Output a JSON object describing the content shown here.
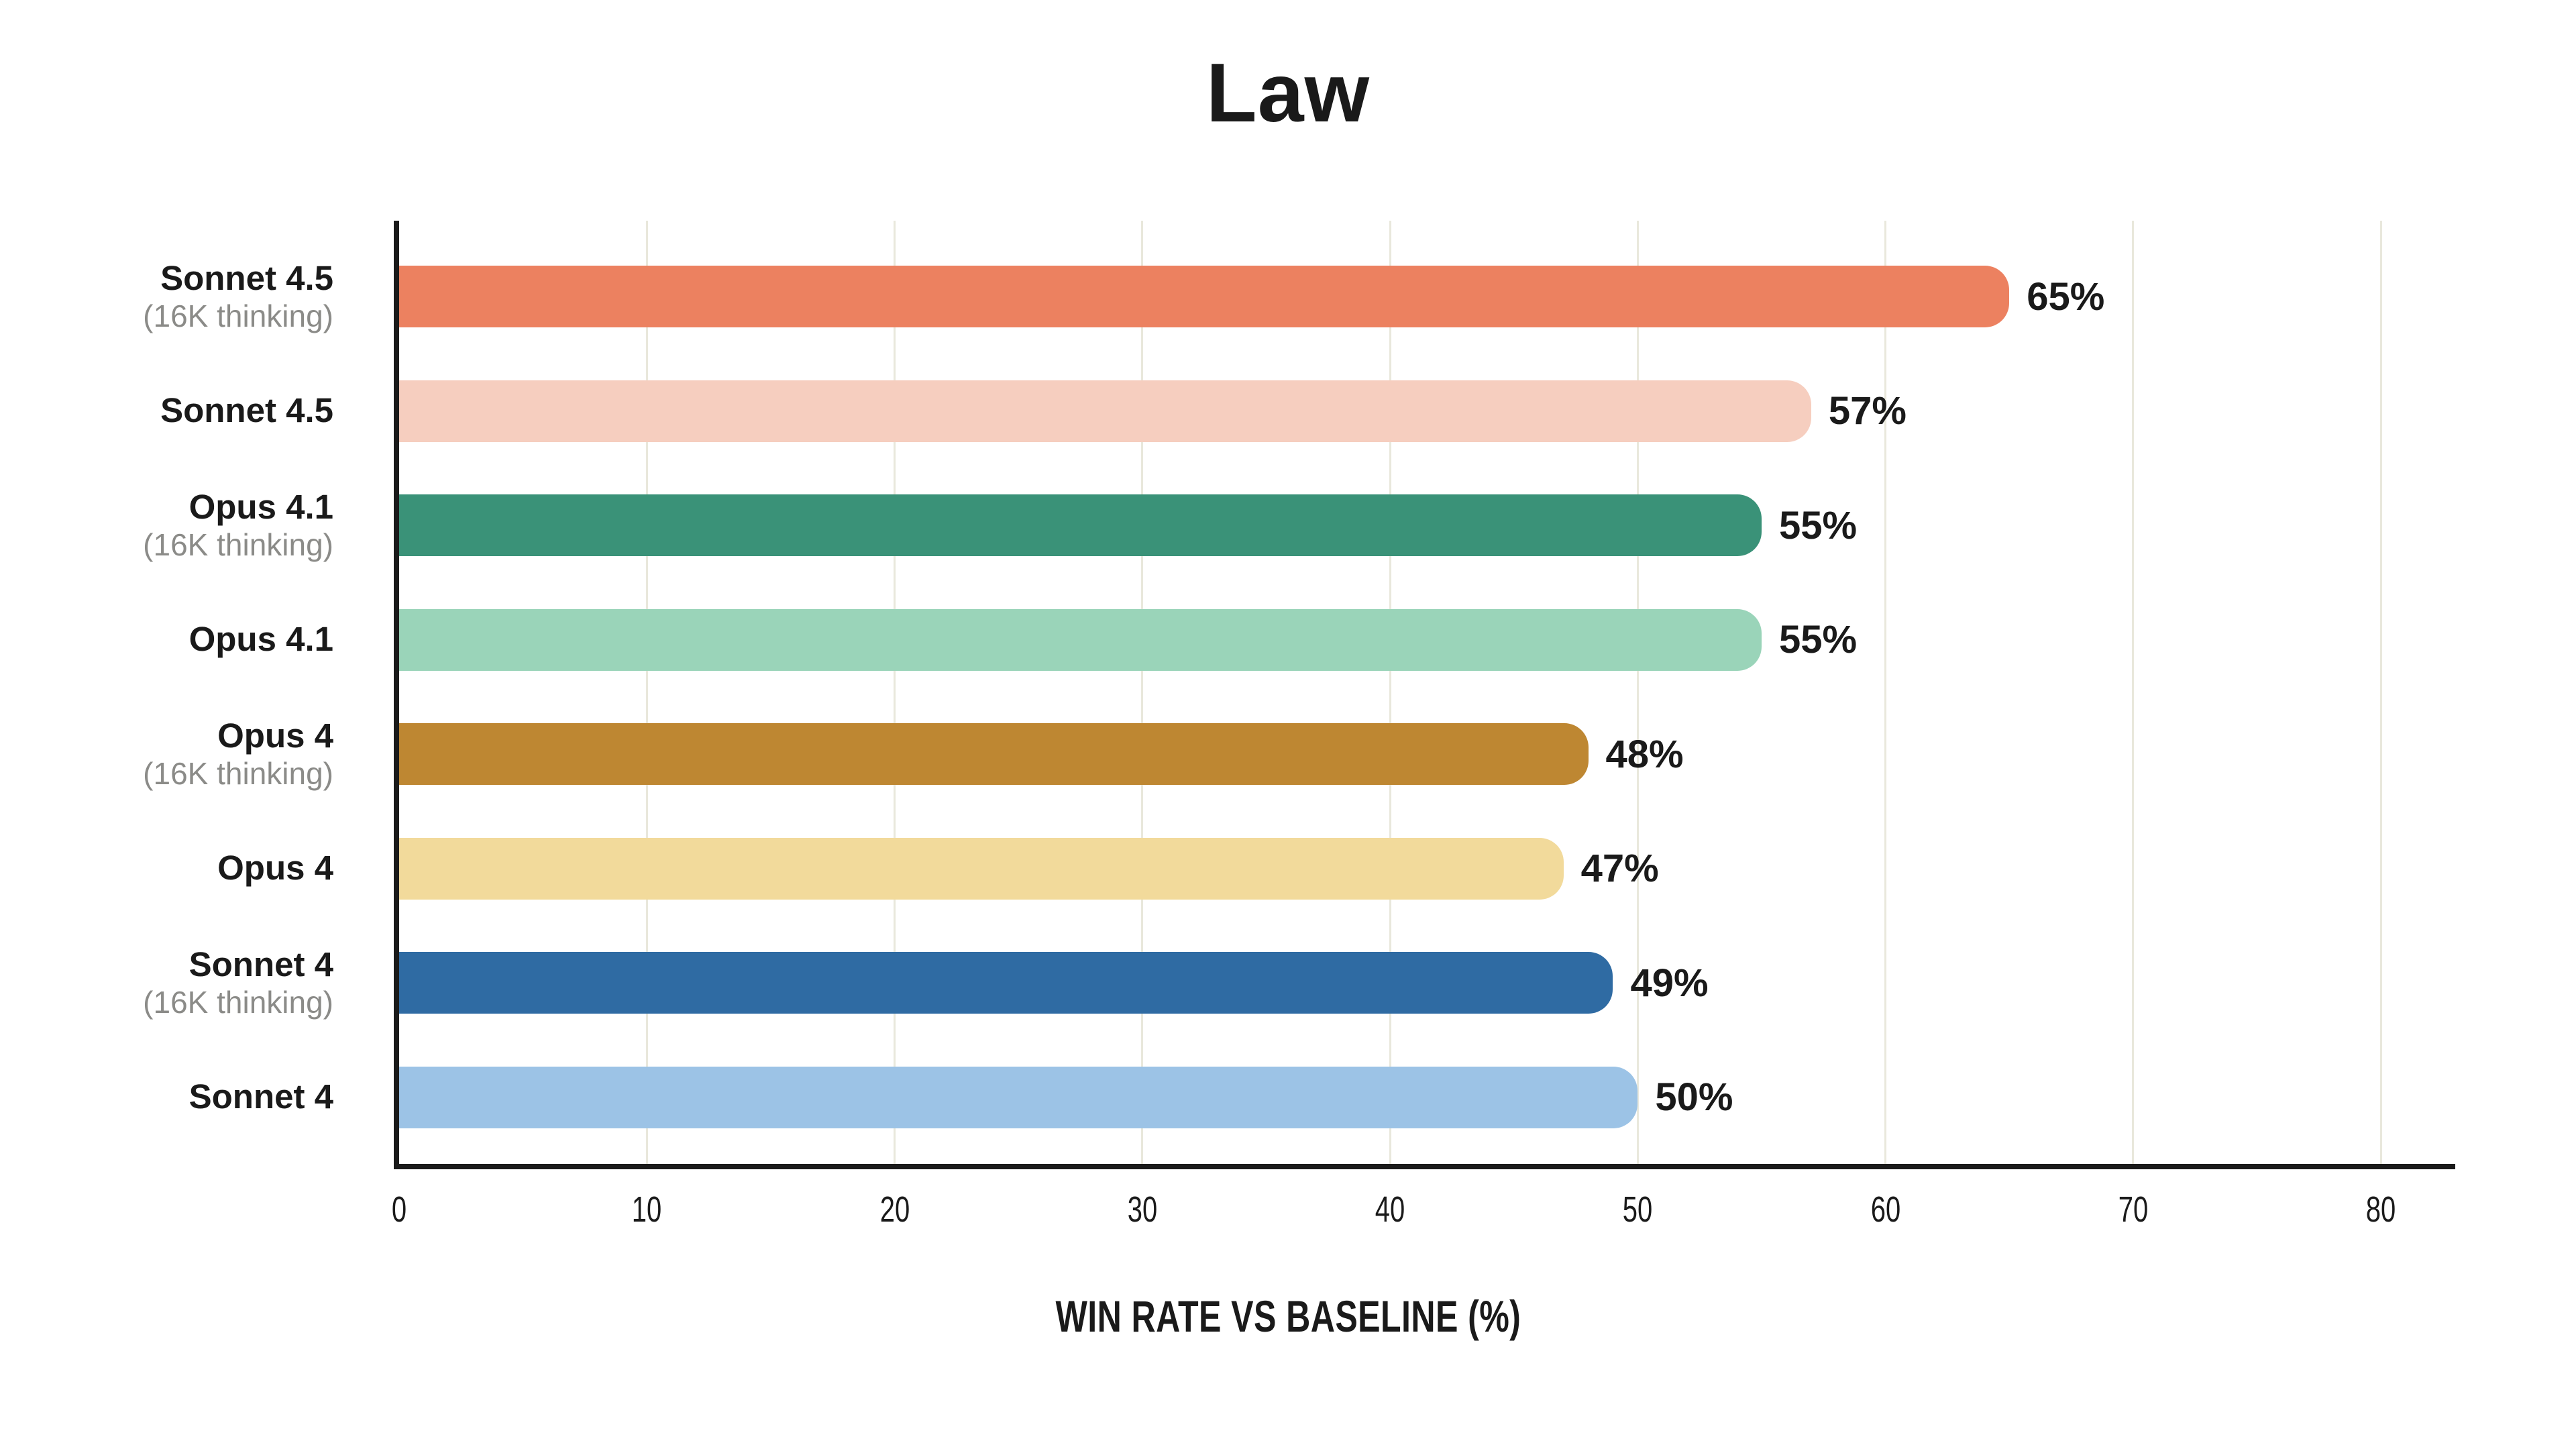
{
  "title": "Law",
  "chart_data": {
    "type": "bar",
    "orientation": "horizontal",
    "title": "Law",
    "xlabel": "WIN RATE VS BASELINE (%)",
    "xlim": [
      0,
      83
    ],
    "xticks": [
      0,
      10,
      20,
      30,
      40,
      50,
      60,
      70,
      80
    ],
    "grid": "vertical",
    "legend": "none",
    "categories": [
      {
        "label": "Sonnet 4.5",
        "sublabel": "(16K thinking)"
      },
      {
        "label": "Sonnet 4.5",
        "sublabel": ""
      },
      {
        "label": "Opus 4.1",
        "sublabel": "(16K thinking)"
      },
      {
        "label": "Opus 4.1",
        "sublabel": ""
      },
      {
        "label": "Opus 4",
        "sublabel": "(16K thinking)"
      },
      {
        "label": "Opus 4",
        "sublabel": ""
      },
      {
        "label": "Sonnet 4",
        "sublabel": "(16K thinking)"
      },
      {
        "label": "Sonnet 4",
        "sublabel": ""
      }
    ],
    "values": [
      65,
      57,
      55,
      55,
      48,
      47,
      49,
      50
    ],
    "value_labels": [
      "65%",
      "57%",
      "55%",
      "55%",
      "48%",
      "47%",
      "49%",
      "50%"
    ],
    "bar_colors": [
      "#EC8160",
      "#F6CEBF",
      "#3A9278",
      "#9AD4B9",
      "#BE8732",
      "#F2DA9B",
      "#2F6BA3",
      "#9CC3E6"
    ],
    "colors": {
      "text": "#1A1A1A",
      "sublabel_text": "#8B8B88",
      "gridline": "#E9E8DC",
      "spine": "#1A1A1A",
      "background": "#FFFFFF"
    }
  }
}
